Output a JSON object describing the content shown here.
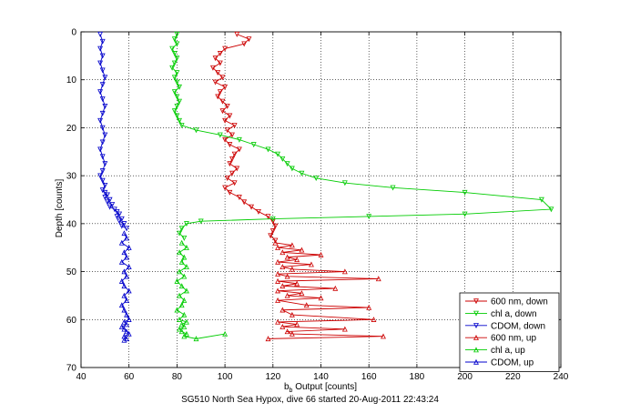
{
  "caption": "SG510 North Sea Hypox, dive 66 started 20-Aug-2011 22:43:24",
  "chart_data": {
    "type": "line",
    "xlabel_main": "b",
    "xlabel_sub": "b",
    "xlabel_rest": " Output [counts]",
    "ylabel": "Depth [counts]",
    "xlim": [
      40,
      240
    ],
    "ylim": [
      0,
      70
    ],
    "y_reversed": true,
    "grid": true,
    "xticks": [
      40,
      60,
      80,
      100,
      120,
      140,
      160,
      180,
      200,
      220,
      240
    ],
    "yticks": [
      0,
      10,
      20,
      30,
      40,
      50,
      60,
      70
    ],
    "legend_position": "bottom-right",
    "series": [
      {
        "name": "600 nm, down",
        "color": "#cc0000",
        "marker": "triangle-down",
        "x": [
          105,
          110,
          108,
          100,
          98,
          96,
          98,
          95,
          97,
          99,
          96,
          100,
          98,
          97,
          99,
          101,
          99,
          102,
          100,
          104,
          101,
          103,
          100,
          102,
          106,
          104,
          103,
          102,
          105,
          103,
          101,
          104,
          100,
          102,
          106,
          108,
          111,
          114,
          118,
          120,
          121,
          120,
          119,
          121
        ],
        "y": [
          0.5,
          1.5,
          2.5,
          3.5,
          4.5,
          5.5,
          6.5,
          7.5,
          8.5,
          9.5,
          10.5,
          11.5,
          12.5,
          13.5,
          14.5,
          15.5,
          16.5,
          17.5,
          18.5,
          19.5,
          20.5,
          21.5,
          22.5,
          23.5,
          24.5,
          25.5,
          26.5,
          27.5,
          28.5,
          29.5,
          30.5,
          31.5,
          32.5,
          33.5,
          34.5,
          35.5,
          36.5,
          37.5,
          38.5,
          39.5,
          40.5,
          41.5,
          42.5,
          43.5
        ]
      },
      {
        "name": "chl a, down",
        "color": "#00cc00",
        "marker": "triangle-down",
        "x": [
          80,
          79,
          80,
          78,
          79,
          80,
          79,
          78,
          80,
          79,
          80,
          81,
          79,
          80,
          81,
          80,
          79,
          80,
          81,
          82,
          88,
          98,
          106,
          112,
          118,
          122,
          124,
          126,
          128,
          132,
          138,
          150,
          170,
          200,
          232,
          236,
          200,
          160,
          120,
          90,
          84,
          82,
          81,
          83
        ],
        "y": [
          0.5,
          1.5,
          2.5,
          3.5,
          4.5,
          5.5,
          6.5,
          7.5,
          8.5,
          9.5,
          10.5,
          11.5,
          12.5,
          13.5,
          14.5,
          15.5,
          16.5,
          17.5,
          18.5,
          19.5,
          20.5,
          21.5,
          22.5,
          23.5,
          24.5,
          25.5,
          26.5,
          27.5,
          28.5,
          29.5,
          30.5,
          31.5,
          32.5,
          33.5,
          35.0,
          37.0,
          38.0,
          38.5,
          39.0,
          39.5,
          40.0,
          41.0,
          42.0,
          43.0
        ]
      },
      {
        "name": "CDOM, down",
        "color": "#0000cc",
        "marker": "triangle-down",
        "x": [
          48,
          49,
          48,
          49,
          48,
          49,
          50,
          49,
          48,
          49,
          50,
          49,
          48,
          49,
          50,
          49,
          48,
          49,
          50,
          49,
          48,
          49,
          50,
          49,
          50,
          51,
          50,
          52,
          51,
          53,
          52,
          54,
          55,
          56,
          55,
          57,
          56,
          58,
          57,
          59
        ],
        "y": [
          0.5,
          2,
          3.5,
          5,
          6.5,
          8,
          9.5,
          11,
          12.5,
          14,
          15.5,
          17,
          18.5,
          20,
          21.5,
          23,
          24.5,
          26,
          27.5,
          29,
          30,
          31,
          32,
          33,
          33.5,
          34,
          34.5,
          35,
          35.5,
          36,
          36.5,
          37,
          37.5,
          38,
          38.5,
          39,
          39.5,
          40,
          40.5,
          41
        ]
      },
      {
        "name": "600 nm, up",
        "color": "#cc0000",
        "marker": "triangle-up",
        "x": [
          121,
          128,
          122,
          132,
          124,
          140,
          126,
          130,
          122,
          136,
          124,
          128,
          150,
          122,
          126,
          164,
          122,
          130,
          124,
          146,
          122,
          132,
          126,
          140,
          122,
          134,
          160,
          124,
          128,
          162,
          122,
          130,
          124,
          150,
          126,
          128,
          166,
          118
        ],
        "y": [
          44,
          44.5,
          45,
          45.5,
          46,
          46.5,
          47,
          47.5,
          48,
          48.5,
          49,
          49.5,
          50,
          50.5,
          51,
          51.5,
          52,
          52.5,
          53,
          53.5,
          54,
          54.5,
          55,
          55.5,
          56,
          57,
          57.5,
          58,
          59,
          60,
          60.5,
          61,
          61.5,
          62,
          62.5,
          63,
          63.5,
          64
        ]
      },
      {
        "name": "chl a, up",
        "color": "#00cc00",
        "marker": "triangle-up",
        "x": [
          82,
          84,
          81,
          83,
          82,
          84,
          81,
          83,
          80,
          82,
          84,
          81,
          83,
          82,
          80,
          83,
          81,
          84,
          82,
          83,
          81,
          82,
          84,
          83,
          88,
          100
        ],
        "y": [
          44,
          45,
          46,
          47,
          48,
          49,
          50,
          51,
          52,
          53,
          54,
          55,
          56,
          57,
          58,
          59,
          60,
          60.5,
          61,
          61.5,
          62,
          62.5,
          63,
          63.5,
          64,
          63
        ]
      },
      {
        "name": "CDOM, up",
        "color": "#0000cc",
        "marker": "triangle-up",
        "x": [
          58,
          59,
          57,
          60,
          58,
          59,
          57,
          60,
          58,
          59,
          57,
          58,
          60,
          58,
          59,
          57,
          58,
          59,
          60,
          58,
          59,
          57,
          58,
          59,
          60,
          58,
          59,
          58
        ],
        "y": [
          42,
          43,
          44,
          45,
          46,
          47,
          48,
          49,
          50,
          51,
          52,
          53,
          54,
          55,
          56,
          57,
          58,
          59,
          60,
          60.5,
          61,
          61.5,
          62,
          62.5,
          63,
          63.5,
          64,
          64.3
        ]
      }
    ]
  }
}
